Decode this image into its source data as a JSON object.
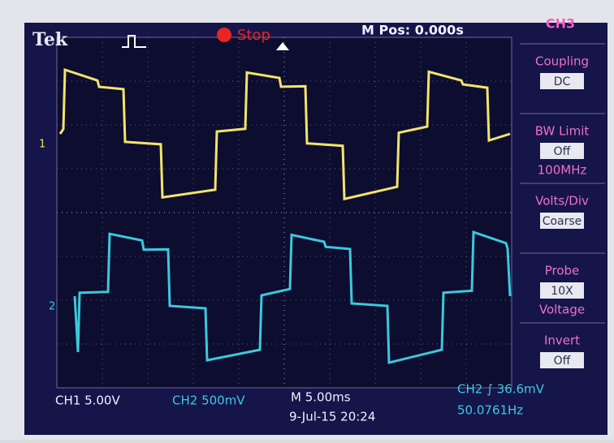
{
  "header": {
    "brand": "Tek",
    "state": "Stop",
    "position": "M Pos: 0.000s"
  },
  "menu": {
    "title": "CH3",
    "items": [
      {
        "label": "Coupling",
        "value": "DC"
      },
      {
        "label": "BW Limit",
        "value": "Off",
        "extra": "100MHz"
      },
      {
        "label": "Volts/Div",
        "value": "Coarse"
      },
      {
        "label": "Probe",
        "value": "10X",
        "extra": "Voltage"
      },
      {
        "label": "Invert",
        "value": "Off"
      }
    ]
  },
  "markers": {
    "ch1": "1",
    "ch2": "2"
  },
  "footer": {
    "ch1": "CH1  5.00V",
    "ch2": "CH2  500mV",
    "timebase": "M 5.00ms",
    "date": "9-Jul-15 20:24",
    "trigger": "CH2 ∫ 36.6mV",
    "frequency": "50.0761Hz"
  }
}
